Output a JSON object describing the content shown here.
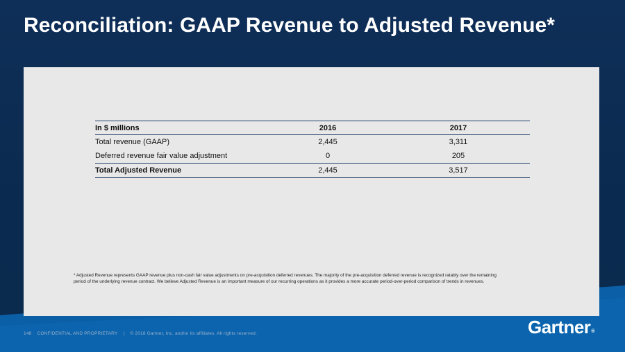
{
  "slide": {
    "title": "Reconciliation: GAAP Revenue to Adjusted Revenue*"
  },
  "table": {
    "header": [
      "In $ millions",
      "2016",
      "2017"
    ],
    "rows": [
      {
        "label": "Total revenue (GAAP)",
        "y2016": "2,445",
        "y2017": "3,311"
      },
      {
        "label": "Deferred revenue fair value adjustment",
        "y2016": "0",
        "y2017": "205"
      },
      {
        "label": "Total Adjusted Revenue",
        "y2016": "2,445",
        "y2017": "3,517"
      }
    ]
  },
  "footnote": "* Adjusted Revenue represents GAAP revenue plus non-cash fair value adjustments on pre-acquisition deferred revenues. The majority of the pre-acquisition deferred revenue is recognized ratably over the remaining period of the underlying revenue contract. We believe Adjusted Revenue is an important measure of our recurring operations as it provides a more accurate period-over-period comparison of trends in revenues.",
  "footer": {
    "page_number": "148",
    "confidential": "CONFIDENTIAL AND PROPRIETARY",
    "separator": "|",
    "copyright": "© 2018 Gartner, Inc. and/or its affiliates. All rights reserved."
  },
  "logo": {
    "text": "Gartner",
    "mark": "®"
  },
  "colors": {
    "background": "#0d2b52",
    "wave": "#0a5fa6",
    "panel": "#e8e8e8",
    "rule": "#1f3d66"
  }
}
